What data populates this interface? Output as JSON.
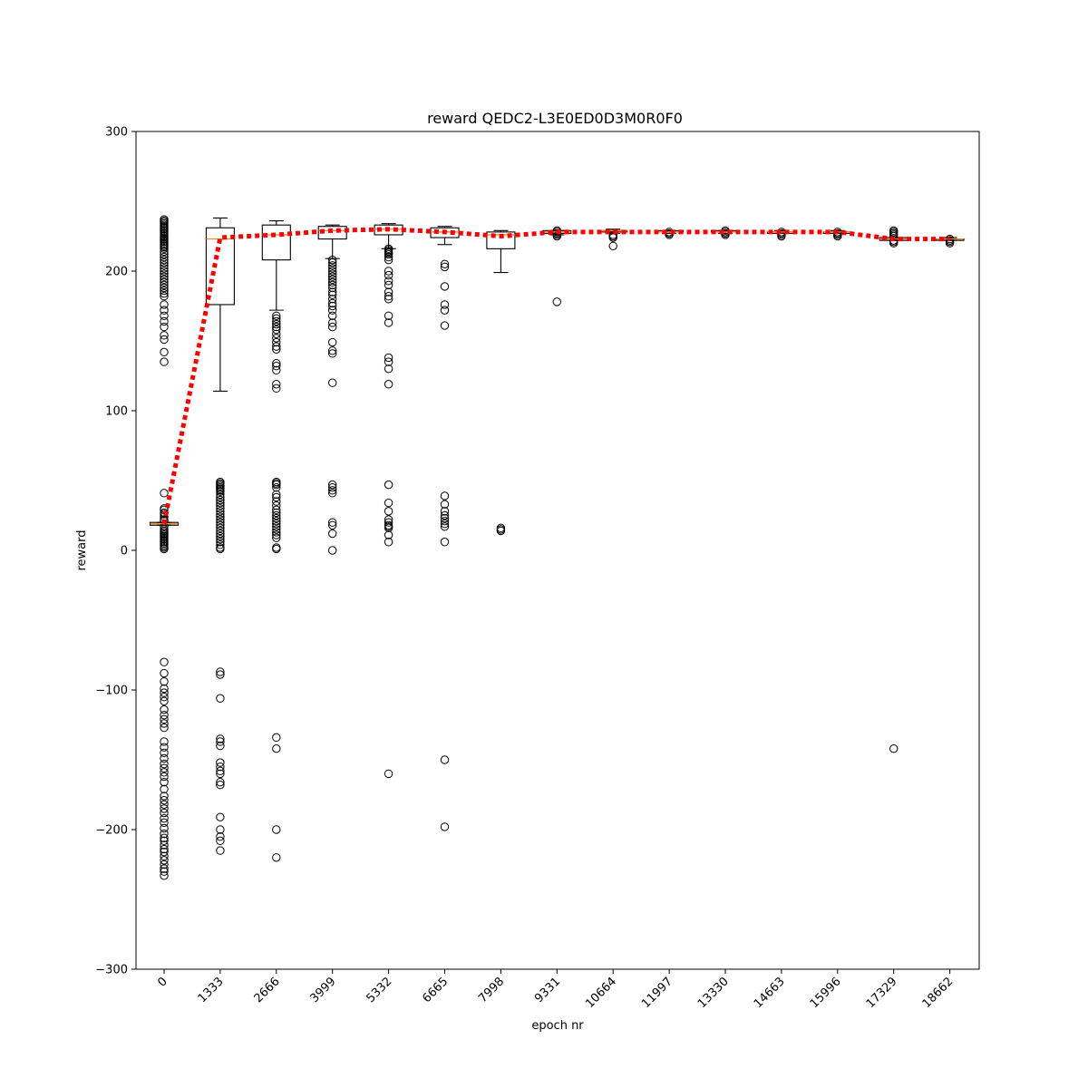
{
  "chart_data": {
    "type": "box",
    "title": "reward QEDC2-L3E0ED0D3M0R0F0",
    "xlabel": "epoch nr",
    "ylabel": "reward",
    "ylim": [
      -300,
      300
    ],
    "yticks": [
      300,
      200,
      100,
      0,
      -100,
      -200,
      -300
    ],
    "ytick_labels": [
      "300",
      "200",
      "100",
      "0",
      "−100",
      "−200",
      "−300"
    ],
    "categories": [
      "0",
      "1333",
      "2666",
      "3999",
      "5332",
      "6665",
      "7998",
      "9331",
      "10664",
      "11997",
      "13330",
      "14663",
      "15996",
      "17329",
      "18662"
    ],
    "grid": false,
    "colors": {
      "box": "#000000",
      "median": "#ff7f0e",
      "mean_line": "#ff0000"
    },
    "series": [
      {
        "type": "box",
        "boxes": [
          {
            "q1": 18,
            "median": 19,
            "q3": 20,
            "whisker_low": 18,
            "whisker_high": 20,
            "fliers": [
              41,
              30,
              29,
              27,
              26,
              24,
              22,
              21,
              17,
              15,
              14,
              13,
              12,
              11,
              10,
              9,
              8,
              7,
              6,
              5,
              4,
              3,
              2,
              1,
              237,
              236,
              235,
              234,
              233,
              232,
              231,
              230,
              229,
              228,
              227,
              226,
              225,
              224,
              223,
              222,
              221,
              220,
              219,
              218,
              217,
              216,
              214,
              212,
              210,
              208,
              206,
              204,
              202,
              200,
              198,
              196,
              194,
              192,
              190,
              188,
              186,
              184,
              182,
              176,
              172,
              168,
              164,
              160,
              154,
              151,
              142,
              135,
              -80,
              -88,
              -94,
              -99,
              -102,
              -105,
              -108,
              -114,
              -118,
              -121,
              -124,
              -127,
              -137,
              -141,
              -145,
              -149,
              -153,
              -156,
              -159,
              -162,
              -166,
              -171,
              -176,
              -179,
              -182,
              -185,
              -188,
              -192,
              -195,
              -199,
              -203,
              -206,
              -208,
              -211,
              -214,
              -216,
              -219,
              -222,
              -225,
              -228,
              -230,
              -233
            ]
          },
          {
            "q1": 176,
            "median": 223,
            "q3": 231,
            "whisker_low": 114,
            "whisker_high": 238,
            "fliers": [
              49,
              48,
              47,
              46,
              45,
              44,
              43,
              42,
              40,
              38,
              36,
              34,
              32,
              30,
              28,
              26,
              24,
              22,
              20,
              18,
              16,
              14,
              12,
              10,
              8,
              6,
              4,
              2,
              1,
              -87,
              -89,
              -106,
              -135,
              -137,
              -140,
              -152,
              -155,
              -158,
              -160,
              -166,
              -168,
              -191,
              -200,
              -205,
              -208,
              -215
            ]
          },
          {
            "q1": 208,
            "median": 226,
            "q3": 233,
            "whisker_low": 172,
            "whisker_high": 236,
            "fliers": [
              168,
              166,
              164,
              162,
              160,
              158,
              155,
              152,
              149,
              146,
              144,
              134,
              132,
              129,
              119,
              116,
              49,
              48,
              47,
              45,
              40,
              38,
              35,
              32,
              29,
              27,
              25,
              23,
              21,
              19,
              17,
              15,
              13,
              11,
              9,
              2,
              1,
              -134,
              -142,
              -200,
              -220
            ]
          },
          {
            "q1": 223,
            "median": 229,
            "q3": 232,
            "whisker_low": 209,
            "whisker_high": 233,
            "fliers": [
              208,
              206,
              204,
              202,
              200,
              198,
              196,
              194,
              192,
              190,
              188,
              185,
              183,
              180,
              177,
              175,
              172,
              168,
              163,
              160,
              149,
              143,
              141,
              120,
              47,
              45,
              43,
              41,
              20,
              18,
              12,
              0
            ]
          },
          {
            "q1": 226,
            "median": 230,
            "q3": 233,
            "whisker_low": 216,
            "whisker_high": 234,
            "fliers": [
              216,
              215,
              214,
              213,
              212,
              210,
              208,
              200,
              197,
              193,
              190,
              185,
              182,
              180,
              168,
              163,
              138,
              135,
              130,
              119,
              47,
              34,
              28,
              22,
              20,
              18,
              17,
              16,
              11,
              6,
              -160
            ]
          },
          {
            "q1": 224,
            "median": 228,
            "q3": 231,
            "whisker_low": 219,
            "whisker_high": 232,
            "fliers": [
              205,
              203,
              189,
              176,
              172,
              161,
              39,
              33,
              28,
              25,
              23,
              21,
              19,
              17,
              6,
              -150,
              -198
            ]
          },
          {
            "q1": 216,
            "median": 226,
            "q3": 228,
            "whisker_low": 199,
            "whisker_high": 229,
            "fliers": [
              16,
              15,
              14
            ]
          },
          {
            "q1": 227,
            "median": 228,
            "q3": 229,
            "whisker_low": 226,
            "whisker_high": 229,
            "fliers": [
              229,
              228,
              227,
              226,
              225,
              178
            ]
          },
          {
            "q1": 228,
            "median": 229,
            "q3": 229,
            "whisker_low": 227,
            "whisker_high": 230,
            "fliers": [
              226,
              225,
              224,
              218
            ]
          },
          {
            "q1": 228,
            "median": 228,
            "q3": 229,
            "whisker_low": 227,
            "whisker_high": 229,
            "fliers": [
              228,
              227,
              226
            ]
          },
          {
            "q1": 228,
            "median": 228,
            "q3": 229,
            "whisker_low": 227,
            "whisker_high": 229,
            "fliers": [
              229,
              228,
              227,
              226
            ]
          },
          {
            "q1": 227,
            "median": 228,
            "q3": 228,
            "whisker_low": 227,
            "whisker_high": 229,
            "fliers": [
              228,
              227,
              226,
              225
            ]
          },
          {
            "q1": 227,
            "median": 228,
            "q3": 228,
            "whisker_low": 227,
            "whisker_high": 229,
            "fliers": [
              228,
              227,
              226,
              225
            ]
          },
          {
            "q1": 222,
            "median": 223,
            "q3": 224,
            "whisker_low": 222,
            "whisker_high": 224,
            "fliers": [
              229,
              228,
              227,
              226,
              225,
              222,
              221,
              220,
              -142
            ]
          },
          {
            "q1": 222,
            "median": 223,
            "q3": 223,
            "whisker_low": 222,
            "whisker_high": 224,
            "fliers": [
              223,
              222,
              221,
              220
            ]
          }
        ]
      },
      {
        "type": "line",
        "style": "dotted",
        "values": [
          19,
          224,
          226,
          229,
          230,
          228,
          225,
          228,
          228,
          228,
          228,
          228,
          228,
          223,
          223
        ]
      }
    ]
  }
}
